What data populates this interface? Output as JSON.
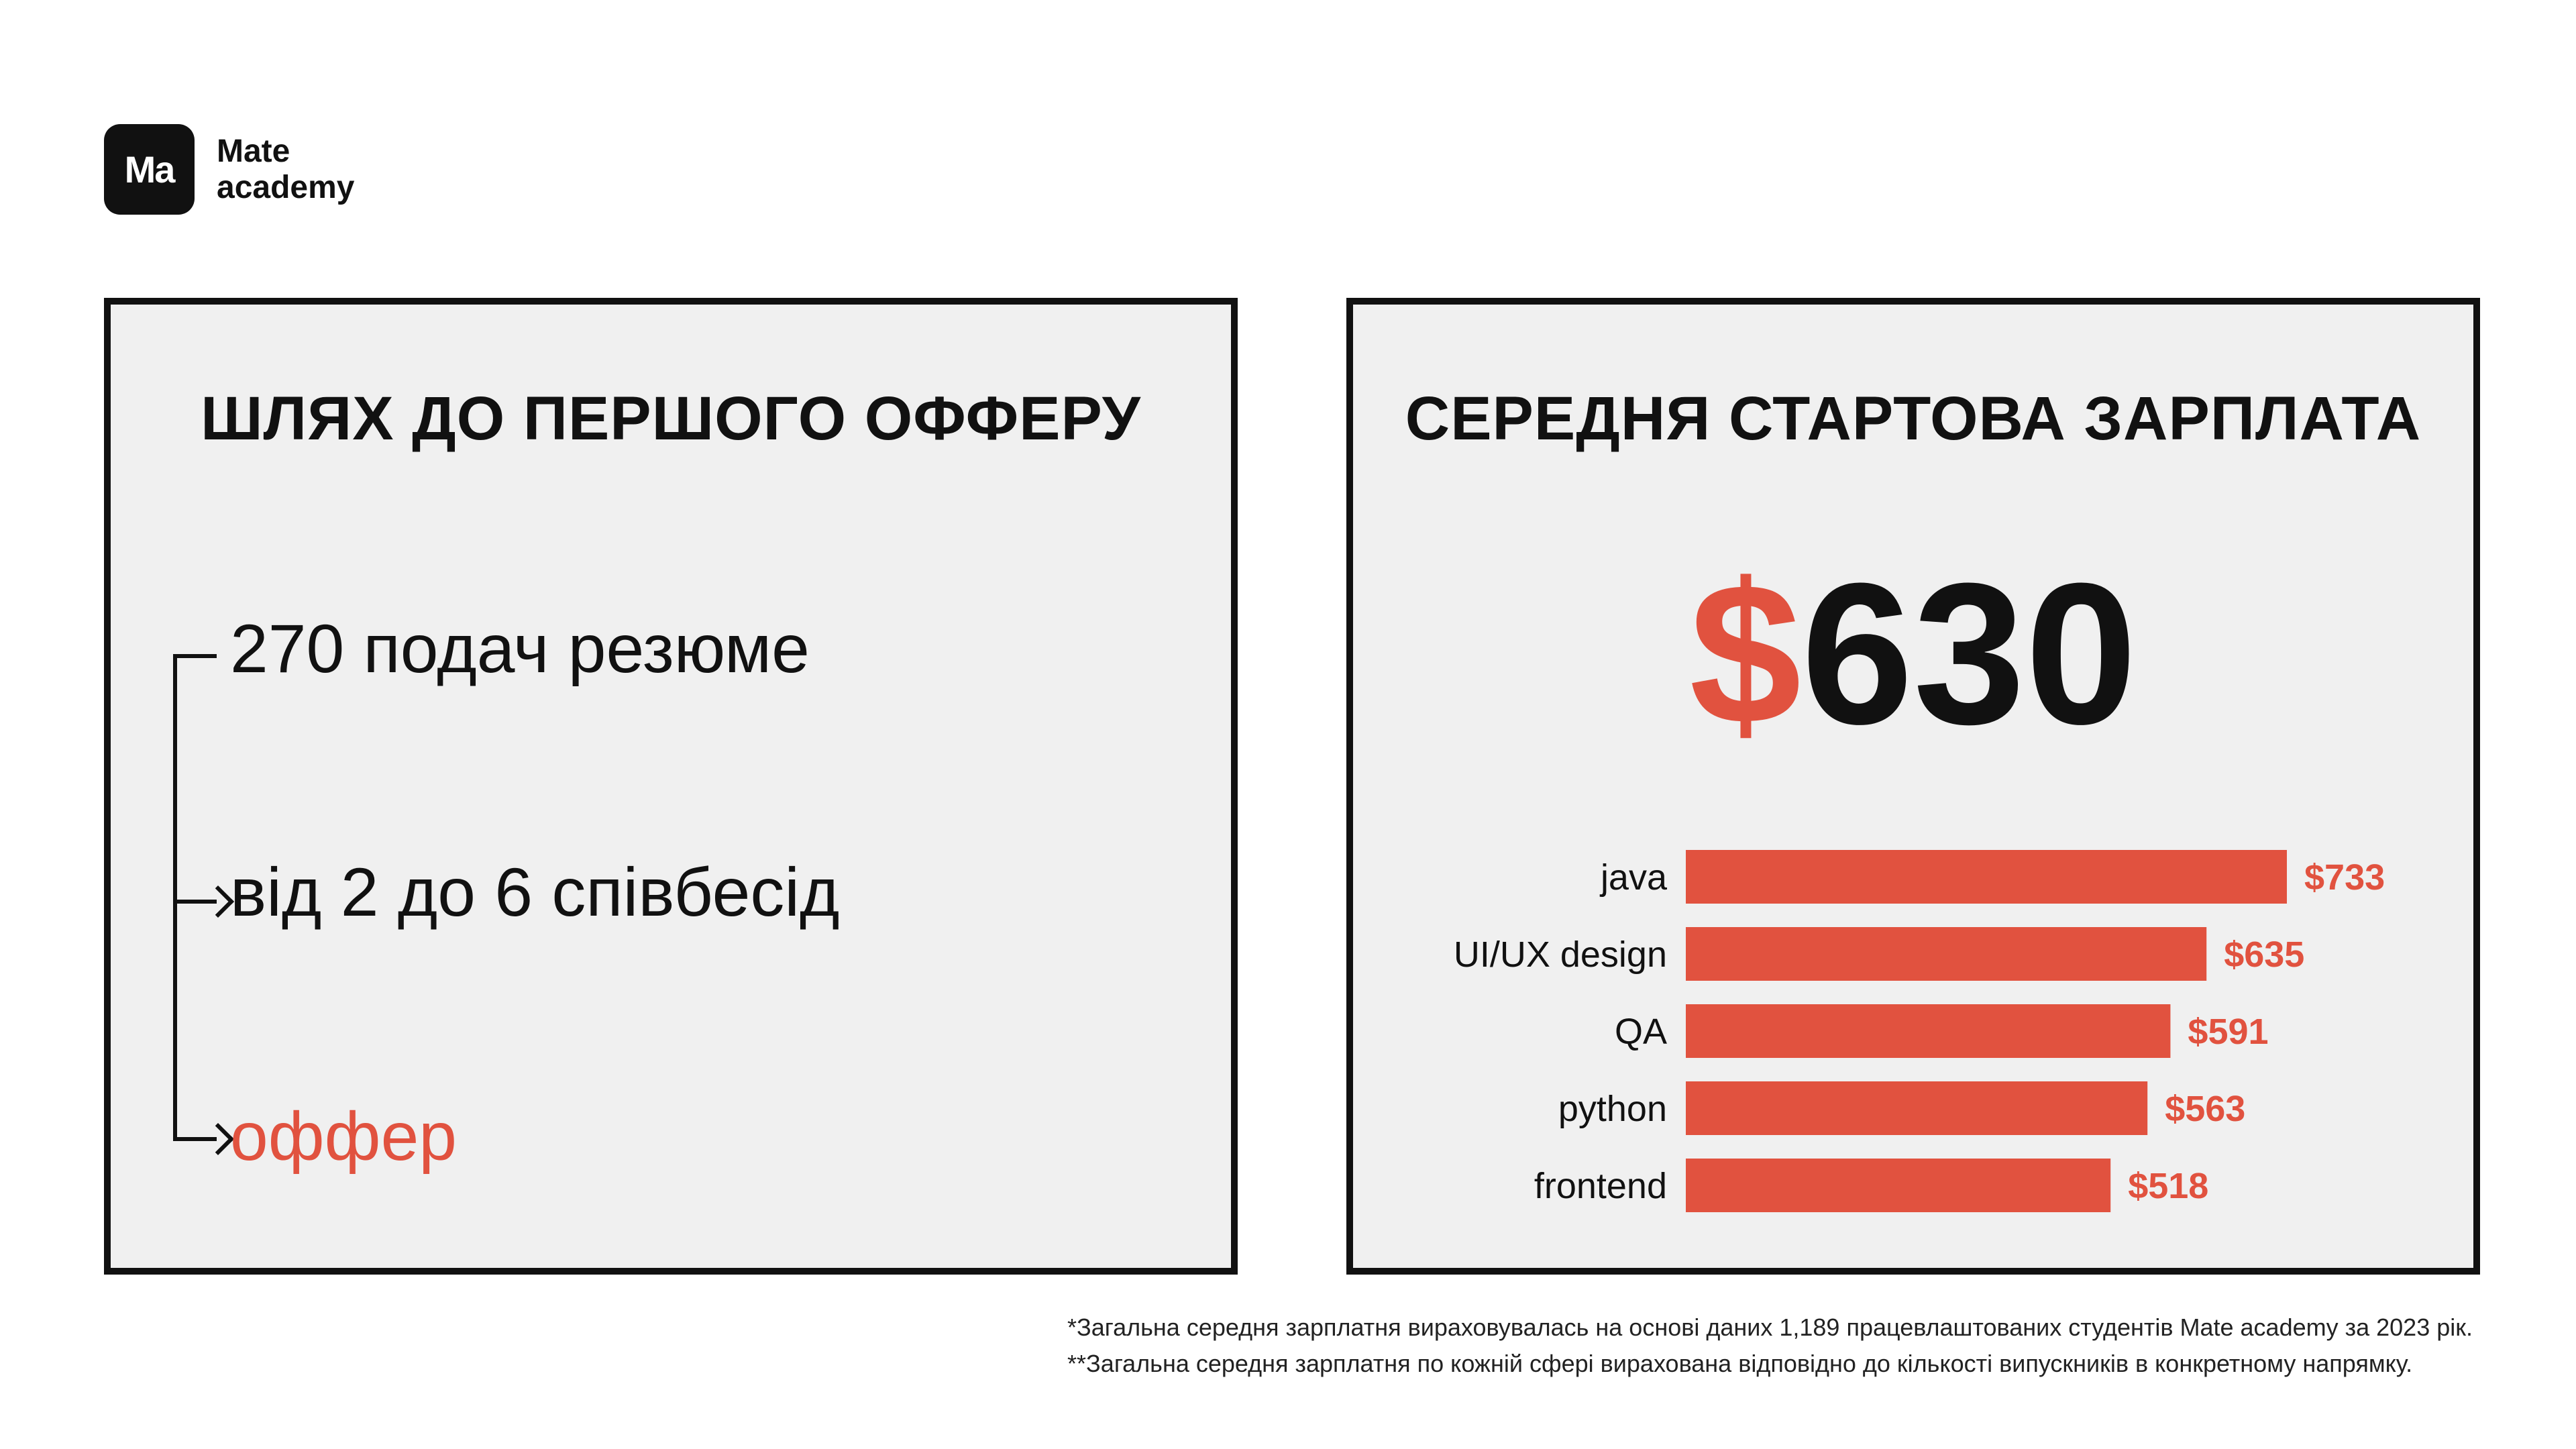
{
  "brand": {
    "badge": "Ma",
    "line1": "Mate",
    "line2": "academy"
  },
  "left_panel": {
    "title": "ШЛЯХ ДО ПЕРШОГО ОФФЕРУ",
    "steps": [
      "270 подач резюме",
      "від 2 до 6 співбесід",
      "оффер"
    ]
  },
  "right_panel": {
    "title": "СЕРЕДНЯ СТАРТОВА ЗАРПЛАТА",
    "headline_currency": "$",
    "headline_value": "630"
  },
  "chart_data": {
    "type": "bar",
    "orientation": "horizontal",
    "categories": [
      "java",
      "UI/UX design",
      "QA",
      "python",
      "frontend"
    ],
    "values": [
      733,
      635,
      591,
      563,
      518
    ],
    "value_labels": [
      "$733",
      "$635",
      "$591",
      "$563",
      "$518"
    ],
    "bar_color": "#e1523f",
    "title": "",
    "xlabel": "",
    "ylabel": ""
  },
  "footnotes": [
    "*Загальна середня зарплатня вираховувалась на основі даних 1,189 працевлаштованих студентів Mate academy за 2023 рік.",
    "**Загальна середня зарплатня по кожній сфері вирахована відповідно до кількості випускників в конкретному напрямку."
  ],
  "colors": {
    "accent": "#e1523f",
    "panel_bg": "#f0f0f0",
    "ink": "#111111"
  }
}
